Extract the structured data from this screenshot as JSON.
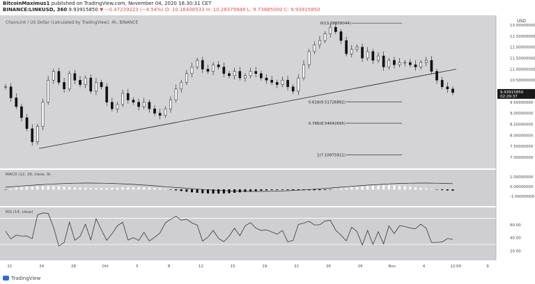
{
  "header": {
    "author": "BitcoinMaximus1",
    "published": "published on TradingView.com, November 04, 2020 16:30:31 CET",
    "symbol": "BINANCE:LINKUSD, 360",
    "price": "9.93915850",
    "change": "▼ −0.47239223 (−4.54%)",
    "ohlc": "O: 10.16408533  H: 10.28379948  L: 9.73885000  C: 9.93915850"
  },
  "footer": {
    "brand": "TradingView"
  },
  "colors": {
    "bg_main": "#d4d4d8",
    "bg_lower": "#cfcfd3",
    "candle": "#111111",
    "line": "#222222"
  },
  "chart_data": {
    "type": "candlestick",
    "title": "ChainLink / US Dollar (calculated by TradingView), 4h, BINANCE",
    "yaxis_unit": "USD",
    "y_ticks": [
      "13.00000000",
      "12.50000000",
      "12.00000000",
      "11.50000000",
      "11.00000000",
      "10.50000000",
      "10.00000000",
      "9.50000000",
      "9.00000000",
      "8.50000000",
      "8.00000000",
      "7.50000000",
      "7.00000000"
    ],
    "ylim": [
      7.0,
      13.0
    ],
    "x_ticks": [
      "21",
      "24",
      "28",
      "Oct",
      "5",
      "8",
      "12",
      "15",
      "19",
      "22",
      "26",
      "29",
      "Nov",
      "4",
      "12:00",
      "9"
    ],
    "last_price": "9.93915850",
    "countdown": "02:29:37",
    "close_path": [
      10.2,
      9.7,
      9.3,
      8.8,
      8.3,
      7.7,
      8.4,
      9.5,
      10.5,
      10.9,
      10.4,
      10.1,
      10.8,
      10.5,
      10.3,
      10.6,
      10.0,
      10.4,
      10.2,
      9.5,
      9.2,
      9.4,
      9.9,
      9.6,
      9.5,
      9.3,
      9.5,
      9.2,
      9.0,
      8.9,
      9.2,
      9.6,
      10.1,
      10.4,
      10.8,
      11.1,
      11.4,
      11.0,
      10.9,
      11.2,
      11.1,
      10.8,
      10.7,
      10.9,
      10.6,
      10.7,
      10.9,
      10.8,
      10.6,
      10.5,
      10.4,
      10.3,
      10.5,
      10.2,
      10.0,
      10.6,
      11.2,
      11.8,
      12.1,
      12.3,
      12.6,
      12.9,
      12.7,
      12.3,
      11.7,
      11.9,
      12.0,
      11.5,
      11.8,
      11.4,
      11.6,
      11.1,
      11.4,
      11.2,
      11.3,
      11.3,
      11.2,
      11.1,
      11.3,
      11.4,
      10.9,
      10.5,
      10.2,
      10.1,
      9.94
    ],
    "trendline": {
      "from": 7.4,
      "to": 11.0
    },
    "fibonacci": [
      {
        "label": "0(13.08858044)",
        "value": 13.08858044
      },
      {
        "label": "0.618(9.51726892)",
        "value": 9.51726892
      },
      {
        "label": "0.786(8.54642695)",
        "value": 8.54642695
      },
      {
        "label": "1(7.10975921)",
        "value": 7.10975921
      }
    ],
    "macd": {
      "label": "MACD (12, 26, close, 9)",
      "ticks": [
        "1.00000000",
        "0.00000000",
        "-1.00000000"
      ]
    },
    "rsi": {
      "label": "RSI (14, close)",
      "ticks": [
        "60.00",
        "40.00",
        "20.00"
      ],
      "overbought": 70,
      "oversold": 30
    }
  }
}
